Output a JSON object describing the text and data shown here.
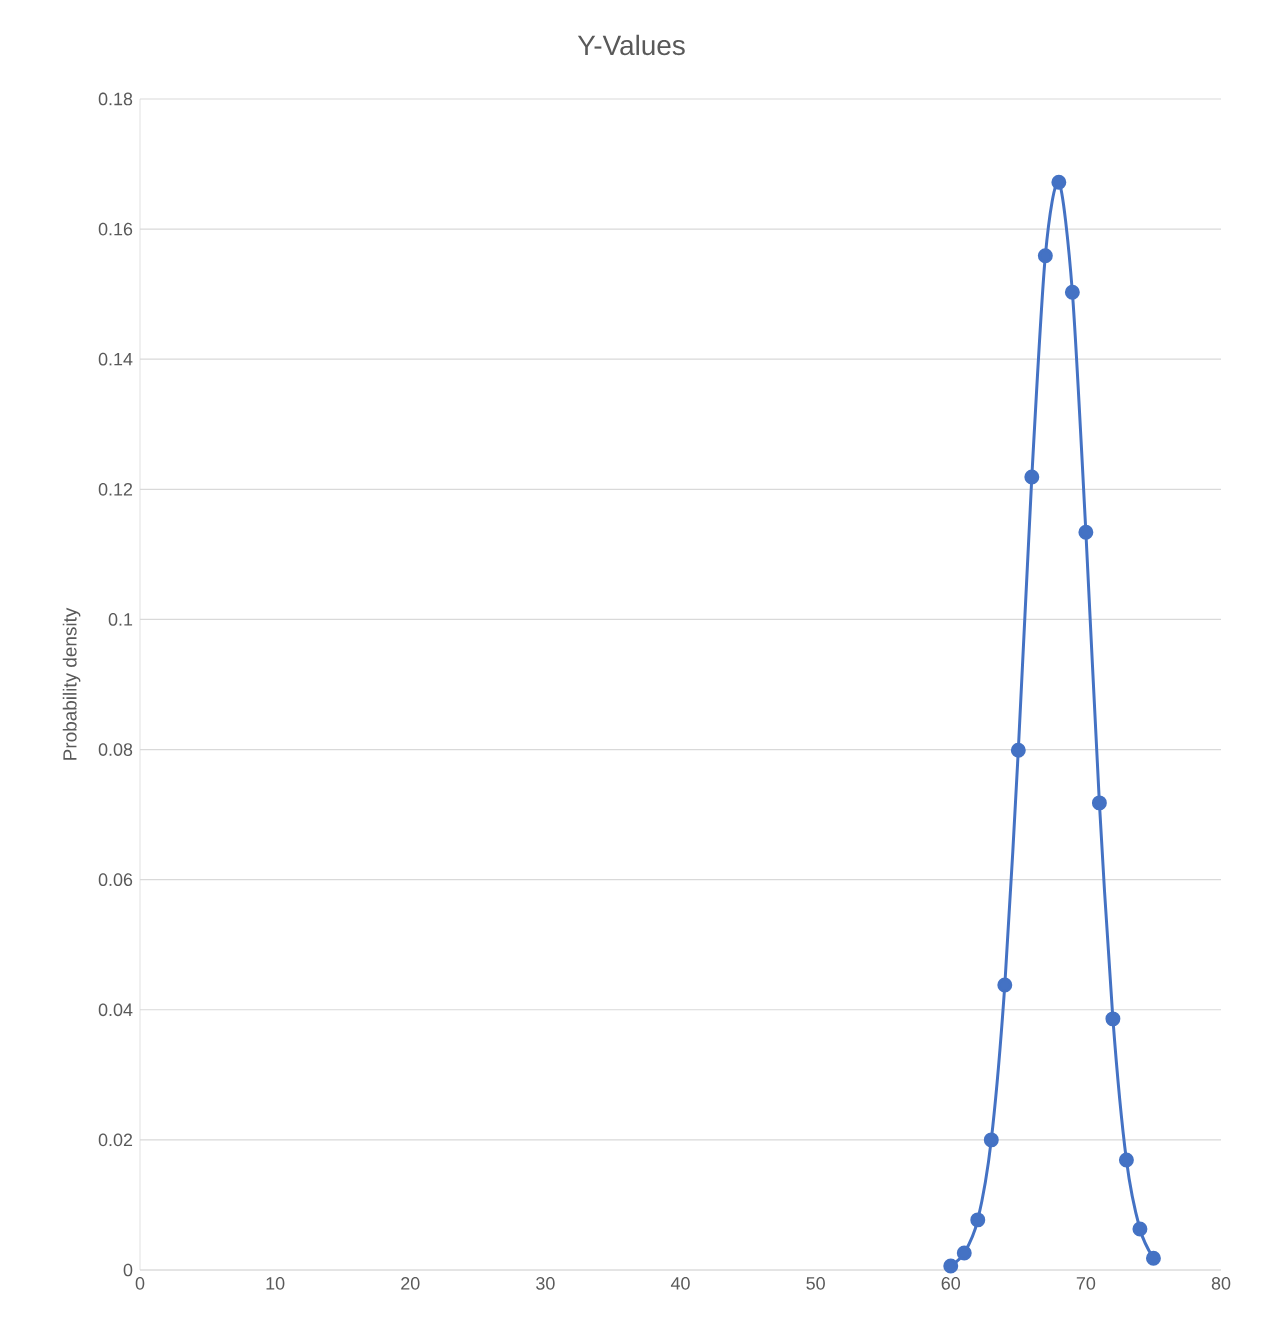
{
  "chart_data": {
    "type": "line",
    "title": "Y-Values",
    "ylabel": "Probability density",
    "x": [
      60,
      61,
      62,
      63,
      64,
      65,
      66,
      67,
      68,
      69,
      70,
      71,
      72,
      73,
      74,
      75
    ],
    "series": [
      {
        "color": "#4472c4",
        "values": [
          0.0006,
          0.0026,
          0.0077,
          0.02,
          0.0438,
          0.0799,
          0.1219,
          0.1559,
          0.1672,
          0.1503,
          0.1134,
          0.0718,
          0.0386,
          0.0169,
          0.0063,
          0.0018
        ]
      }
    ],
    "xlim": [
      0,
      80
    ],
    "xticks": [
      0,
      10,
      20,
      30,
      40,
      50,
      60,
      70,
      80
    ],
    "ylim": [
      0,
      0.18
    ],
    "yticks": [
      0,
      0.02,
      0.04,
      0.06,
      0.08,
      0.1,
      0.12,
      0.14,
      0.16,
      0.18
    ],
    "grid": "y",
    "marker": "circle",
    "line_style": "solid"
  }
}
